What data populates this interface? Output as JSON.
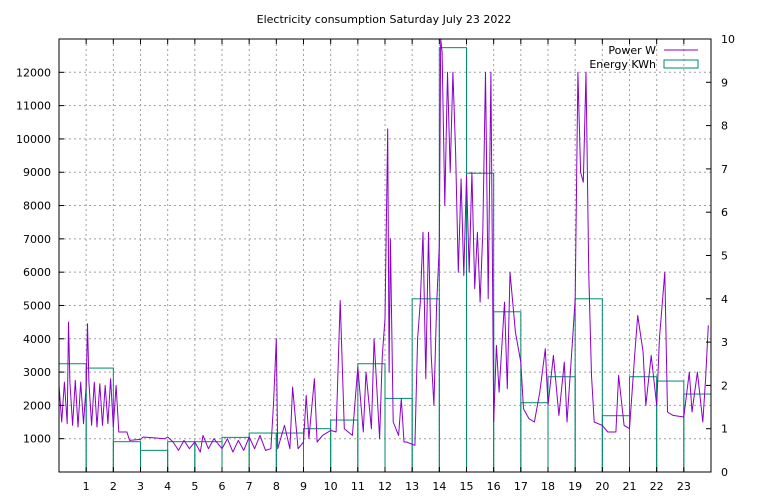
{
  "chart_data": {
    "type": "line",
    "title": "Electricity consumption Saturday July 23 2022",
    "xlabel": "",
    "ylabel": "",
    "x_ticks": [
      "1",
      "2",
      "3",
      "4",
      "5",
      "6",
      "7",
      "8",
      "9",
      "10",
      "11",
      "12",
      "13",
      "14",
      "15",
      "16",
      "17",
      "18",
      "19",
      "20",
      "21",
      "22",
      "23"
    ],
    "xlim": [
      0,
      24
    ],
    "ylim_left": [
      0,
      13000
    ],
    "yticks_left": [
      "1000",
      "2000",
      "3000",
      "4000",
      "5000",
      "6000",
      "7000",
      "8000",
      "9000",
      "10000",
      "11000",
      "12000"
    ],
    "ylim_right": [
      0,
      10
    ],
    "yticks_right": [
      "0",
      "1",
      "2",
      "3",
      "4",
      "5",
      "6",
      "7",
      "8",
      "9",
      "10"
    ],
    "grid": true,
    "legend_position": "top-right",
    "series": [
      {
        "name": "Power W",
        "axis": "left",
        "color": "#8b00c9",
        "style": "line",
        "points": [
          [
            0.0,
            2600
          ],
          [
            0.1,
            1500
          ],
          [
            0.2,
            2700
          ],
          [
            0.3,
            1450
          ],
          [
            0.35,
            4500
          ],
          [
            0.4,
            2700
          ],
          [
            0.5,
            1400
          ],
          [
            0.6,
            2750
          ],
          [
            0.7,
            1350
          ],
          [
            0.8,
            2700
          ],
          [
            0.9,
            1450
          ],
          [
            1.0,
            2600
          ],
          [
            1.05,
            4450
          ],
          [
            1.1,
            2700
          ],
          [
            1.2,
            1400
          ],
          [
            1.3,
            2700
          ],
          [
            1.4,
            1350
          ],
          [
            1.5,
            2650
          ],
          [
            1.6,
            1400
          ],
          [
            1.7,
            2600
          ],
          [
            1.8,
            1450
          ],
          [
            1.9,
            2800
          ],
          [
            2.0,
            1350
          ],
          [
            2.1,
            2600
          ],
          [
            2.2,
            1200
          ],
          [
            2.5,
            1200
          ],
          [
            2.6,
            950
          ],
          [
            3.0,
            980
          ],
          [
            3.1,
            1050
          ],
          [
            3.9,
            1000
          ],
          [
            4.0,
            1050
          ],
          [
            4.2,
            900
          ],
          [
            4.4,
            650
          ],
          [
            4.6,
            950
          ],
          [
            4.8,
            700
          ],
          [
            5.0,
            900
          ],
          [
            5.2,
            600
          ],
          [
            5.3,
            1100
          ],
          [
            5.5,
            700
          ],
          [
            5.7,
            1000
          ],
          [
            6.0,
            700
          ],
          [
            6.2,
            1000
          ],
          [
            6.4,
            600
          ],
          [
            6.6,
            950
          ],
          [
            6.8,
            650
          ],
          [
            7.0,
            1050
          ],
          [
            7.2,
            700
          ],
          [
            7.4,
            1100
          ],
          [
            7.6,
            650
          ],
          [
            7.8,
            700
          ],
          [
            7.9,
            2100
          ],
          [
            8.0,
            4000
          ],
          [
            8.05,
            700
          ],
          [
            8.3,
            1400
          ],
          [
            8.5,
            700
          ],
          [
            8.6,
            2550
          ],
          [
            8.8,
            700
          ],
          [
            9.0,
            900
          ],
          [
            9.1,
            2300
          ],
          [
            9.2,
            1000
          ],
          [
            9.4,
            2800
          ],
          [
            9.5,
            900
          ],
          [
            9.7,
            1100
          ],
          [
            10.0,
            1250
          ],
          [
            10.2,
            1200
          ],
          [
            10.35,
            5150
          ],
          [
            10.5,
            1300
          ],
          [
            10.8,
            1100
          ],
          [
            11.0,
            3150
          ],
          [
            11.2,
            1200
          ],
          [
            11.3,
            3000
          ],
          [
            11.5,
            1300
          ],
          [
            11.6,
            4000
          ],
          [
            11.8,
            1000
          ],
          [
            11.9,
            3500
          ],
          [
            12.0,
            4600
          ],
          [
            12.1,
            10300
          ],
          [
            12.15,
            3000
          ],
          [
            12.2,
            7000
          ],
          [
            12.3,
            1500
          ],
          [
            12.5,
            1100
          ],
          [
            12.6,
            2200
          ],
          [
            12.7,
            900
          ],
          [
            12.8,
            900
          ],
          [
            13.1,
            800
          ],
          [
            13.2,
            4000
          ],
          [
            13.3,
            5100
          ],
          [
            13.4,
            7200
          ],
          [
            13.5,
            2800
          ],
          [
            13.6,
            7200
          ],
          [
            13.7,
            3500
          ],
          [
            13.8,
            2000
          ],
          [
            13.9,
            5000
          ],
          [
            14.0,
            6800
          ],
          [
            14.05,
            13000
          ],
          [
            14.1,
            12600
          ],
          [
            14.2,
            8000
          ],
          [
            14.3,
            12000
          ],
          [
            14.4,
            9000
          ],
          [
            14.5,
            12000
          ],
          [
            14.6,
            9600
          ],
          [
            14.7,
            6000
          ],
          [
            14.8,
            8800
          ],
          [
            14.9,
            5900
          ],
          [
            15.0,
            8900
          ],
          [
            15.1,
            6000
          ],
          [
            15.2,
            9000
          ],
          [
            15.3,
            5500
          ],
          [
            15.4,
            7200
          ],
          [
            15.5,
            5100
          ],
          [
            15.6,
            7200
          ],
          [
            15.7,
            12000
          ],
          [
            15.8,
            5200
          ],
          [
            15.9,
            12000
          ],
          [
            16.0,
            1500
          ],
          [
            16.1,
            3800
          ],
          [
            16.2,
            2400
          ],
          [
            16.4,
            5100
          ],
          [
            16.5,
            2500
          ],
          [
            16.6,
            6000
          ],
          [
            16.8,
            4200
          ],
          [
            17.0,
            3300
          ],
          [
            17.1,
            1900
          ],
          [
            17.3,
            1600
          ],
          [
            17.5,
            1500
          ],
          [
            17.7,
            2400
          ],
          [
            17.9,
            3700
          ],
          [
            18.0,
            2000
          ],
          [
            18.2,
            3500
          ],
          [
            18.4,
            1700
          ],
          [
            18.6,
            3300
          ],
          [
            18.7,
            1500
          ],
          [
            18.9,
            3900
          ],
          [
            19.0,
            5200
          ],
          [
            19.1,
            12000
          ],
          [
            19.2,
            9000
          ],
          [
            19.3,
            8700
          ],
          [
            19.4,
            12000
          ],
          [
            19.5,
            5900
          ],
          [
            19.6,
            2900
          ],
          [
            19.7,
            1500
          ],
          [
            20.0,
            1400
          ],
          [
            20.2,
            1200
          ],
          [
            20.5,
            1200
          ],
          [
            20.6,
            2900
          ],
          [
            20.8,
            1400
          ],
          [
            21.0,
            1300
          ],
          [
            21.2,
            3600
          ],
          [
            21.3,
            4700
          ],
          [
            21.5,
            3600
          ],
          [
            21.6,
            2000
          ],
          [
            21.8,
            3500
          ],
          [
            22.0,
            2000
          ],
          [
            22.1,
            4000
          ],
          [
            22.2,
            5000
          ],
          [
            22.3,
            6000
          ],
          [
            22.4,
            1800
          ],
          [
            22.6,
            1700
          ],
          [
            23.0,
            1650
          ],
          [
            23.2,
            3000
          ],
          [
            23.3,
            1800
          ],
          [
            23.5,
            3000
          ],
          [
            23.7,
            1500
          ],
          [
            23.8,
            2800
          ],
          [
            23.9,
            4400
          ]
        ]
      },
      {
        "name": "Energy KWh",
        "axis": "right",
        "color": "#008a6e",
        "style": "steps",
        "values": [
          2.5,
          2.4,
          0.7,
          0.5,
          0.7,
          0.7,
          0.8,
          0.9,
          0.9,
          1.0,
          1.2,
          2.5,
          1.7,
          4.0,
          9.8,
          6.9,
          3.7,
          1.6,
          2.2,
          4.0,
          1.3,
          2.2,
          2.1,
          1.8
        ]
      }
    ]
  }
}
